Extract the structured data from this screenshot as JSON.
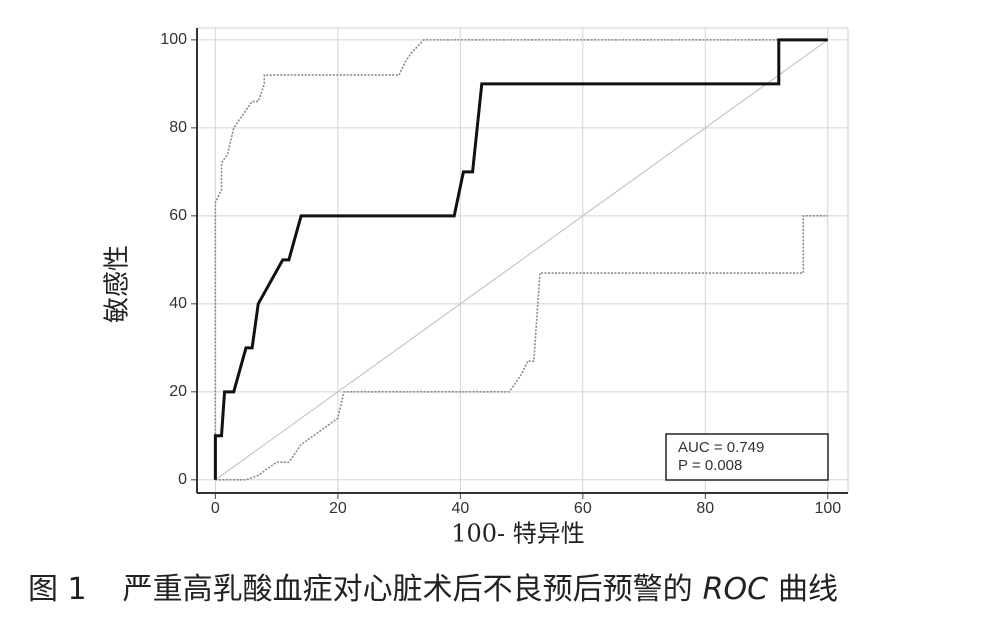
{
  "chart_data": {
    "type": "line",
    "ylabel": "敏感性",
    "xlabel": "100- 特异性",
    "caption": {
      "figure": "图 1",
      "text": "严重高乳酸血症对心脏术后不良预后预警的",
      "italic": "ROC",
      "tail": "曲线"
    },
    "annotations": [
      "AUC = 0.749",
      "P = 0.008"
    ],
    "xlim": [
      -3,
      103.3
    ],
    "ylim": [
      -3,
      102.7
    ],
    "xticks": [
      0,
      20,
      40,
      60,
      80,
      100
    ],
    "yticks": [
      0,
      20,
      40,
      60,
      80,
      100
    ],
    "grid": true,
    "series": [
      {
        "color": "#bdbdbd",
        "width": 1,
        "dash": "none",
        "x": [
          0,
          100
        ],
        "values": [
          0,
          100
        ]
      },
      {
        "color": "#8a8a8a",
        "width": 1.6,
        "dash": "2 1.5",
        "x": [
          0,
          0,
          1,
          1,
          2,
          3,
          5,
          6,
          7,
          8,
          8,
          30,
          31,
          32,
          34,
          100
        ],
        "values": [
          0,
          63,
          66,
          72,
          74,
          80,
          84,
          86,
          86,
          90,
          92,
          92,
          95,
          97,
          100,
          100
        ]
      },
      {
        "color": "#8a8a8a",
        "width": 1.6,
        "dash": "2 1.5",
        "x": [
          0,
          5,
          7,
          9,
          10,
          12,
          14,
          17,
          19,
          20,
          21,
          48,
          50,
          51,
          52,
          53,
          96,
          96,
          100
        ],
        "values": [
          0,
          0,
          1,
          3,
          4,
          4,
          8,
          11,
          13,
          14,
          20,
          20,
          24,
          27,
          27,
          47,
          47,
          60,
          60
        ]
      },
      {
        "color": "#111111",
        "width": 3,
        "dash": "none",
        "x": [
          0,
          0,
          1,
          1.5,
          3,
          5,
          6,
          7,
          11,
          12,
          14,
          39,
          40.5,
          42,
          43.5,
          92,
          92,
          100
        ],
        "values": [
          0,
          10,
          10,
          20,
          20,
          30,
          30,
          40,
          50,
          50,
          60,
          60,
          70,
          70,
          90,
          90,
          100,
          100
        ]
      }
    ]
  }
}
